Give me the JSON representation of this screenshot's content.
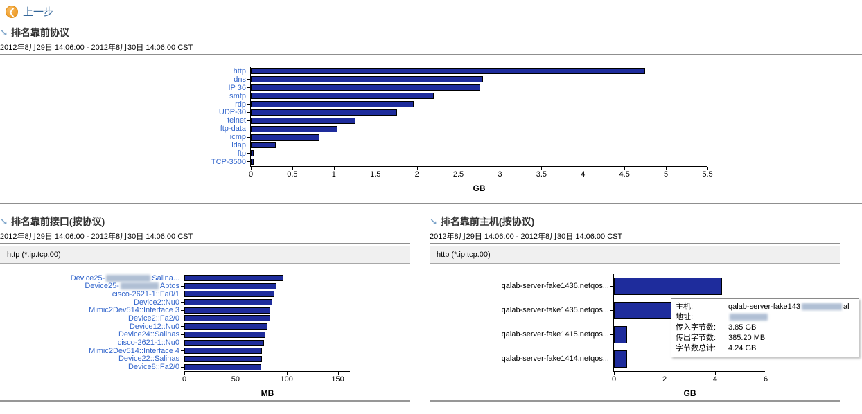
{
  "header": {
    "back_label": "上一步"
  },
  "sections": [
    {
      "title": "排名靠前协议",
      "subtitle": "2012年8月29日 14:06:00 - 2012年8月30日 14:06:00 CST"
    },
    {
      "title": "排名靠前接口(按协议)",
      "subtitle": "2012年8月29日 14:06:00 - 2012年8月30日 14:06:00 CST",
      "filter": "http (*.ip.tcp.00)"
    },
    {
      "title": "排名靠前主机(按协议)",
      "subtitle": "2012年8月29日 14:06:00 - 2012年8月30日 14:06:00 CST",
      "filter": "http (*.ip.tcp.00)"
    }
  ],
  "tooltip": {
    "host_label": "主机:",
    "host_value_pre": "qalab-server-fake143",
    "host_value_post": "al",
    "addr_label": "地址:",
    "in_label": "传入字节数:",
    "in_value": "3.85 GB",
    "out_label": "传出字节数:",
    "out_value": "385.20 MB",
    "total_label": "字节数总计:",
    "total_value": "4.24 GB"
  },
  "colors": {
    "bar": "#1e2c9c",
    "link": "#3366cc",
    "accent_orange": "#f0a234"
  },
  "chart_data": [
    {
      "type": "bar",
      "orientation": "horizontal",
      "title": "排名靠前协议",
      "categories": [
        "http",
        "dns",
        "IP 36",
        "smtp",
        "rdp",
        "UDP-30",
        "telnet",
        "ftp-data",
        "icmp",
        "ldap",
        "ftp",
        "TCP-3500"
      ],
      "values": [
        4.75,
        2.8,
        2.76,
        2.2,
        1.96,
        1.76,
        1.26,
        1.04,
        0.83,
        0.3,
        0.03,
        0.03
      ],
      "xlabel": "GB",
      "xlim": [
        0,
        5.5
      ],
      "xticks": [
        0,
        0.5,
        1,
        1.5,
        2,
        2.5,
        3,
        3.5,
        4,
        4.5,
        5,
        5.5
      ],
      "grid": false,
      "labels_are_links": true
    },
    {
      "type": "bar",
      "orientation": "horizontal",
      "title": "排名靠前接口(按协议)",
      "categories": [
        {
          "pre": "Device25-",
          "redacted": true,
          "blur_w": 64,
          "post": "Salina..."
        },
        {
          "pre": "Device25-",
          "redacted": true,
          "blur_w": 55,
          "post": "Aptos"
        },
        "cisco-2621-1::Fa0/1",
        "Device2::Nu0",
        "Mimic2Dev514::Interface 3",
        "Device2::Fa2/0",
        "Device12::Nu0",
        "Device24::Salinas",
        "cisco-2621-1::Nu0",
        "Mimic2Dev514::Interface 4",
        "Device22::Salinas",
        "Device8::Fa2/0"
      ],
      "values": [
        97,
        90,
        88,
        86,
        84,
        84,
        81,
        79,
        78,
        76,
        76,
        75
      ],
      "xlabel": "MB",
      "xlim": [
        0,
        150
      ],
      "xticks": [
        0,
        50,
        100,
        150
      ],
      "grid": false,
      "labels_are_links": true
    },
    {
      "type": "bar",
      "orientation": "horizontal",
      "title": "排名靠前主机(按协议)",
      "categories": [
        "qalab-server-fake1436.netqos...",
        "qalab-server-fake1435.netqos...",
        "qalab-server-fake1415.netqos...",
        "qalab-server-fake1414.netqos..."
      ],
      "values": [
        4.27,
        4.24,
        0.52,
        0.52
      ],
      "xlabel": "GB",
      "xlim": [
        0,
        6
      ],
      "xticks": [
        0,
        2,
        4,
        6
      ],
      "grid": false,
      "labels_are_links": false
    }
  ]
}
